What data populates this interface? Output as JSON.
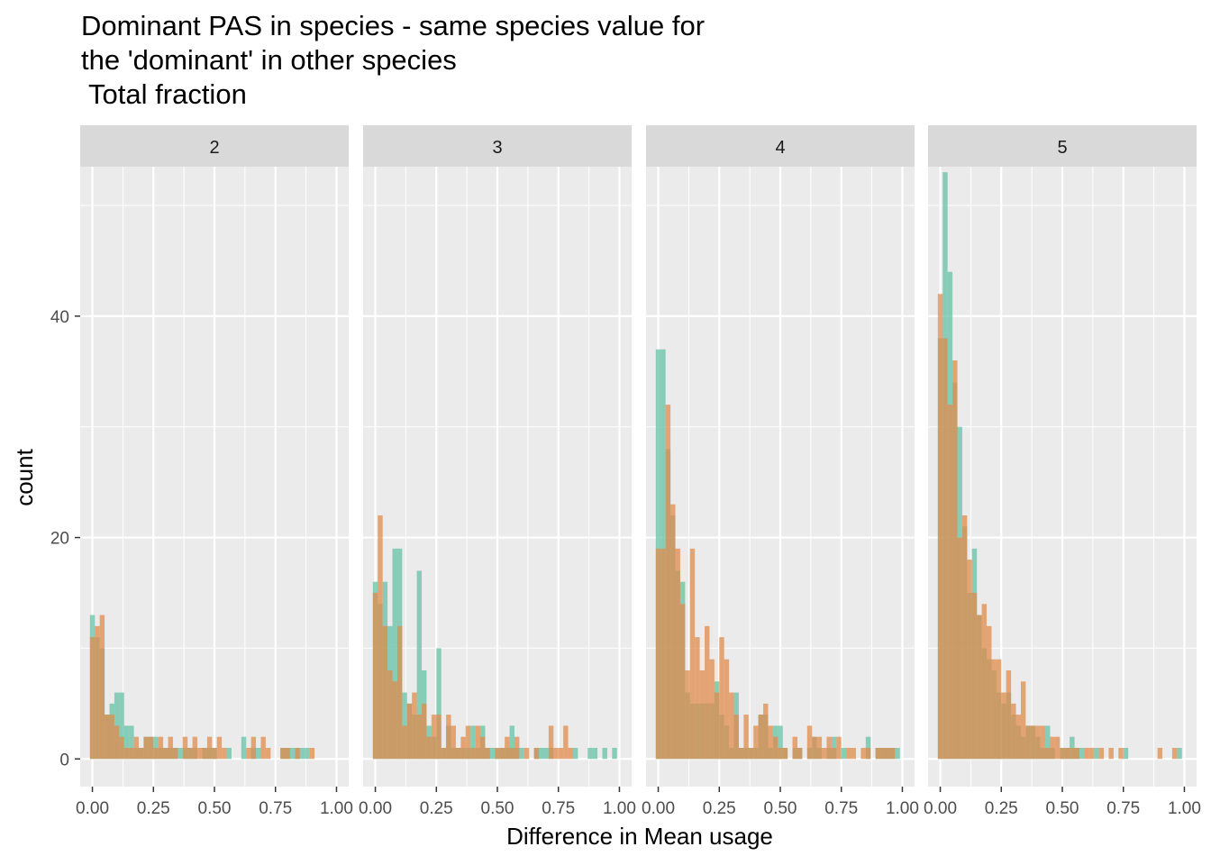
{
  "title_lines": [
    "Dominant PAS in species - same species value for",
    "the 'dominant' in other species",
    " Total fraction"
  ],
  "colors": {
    "panel_bg": "#ebebeb",
    "grid": "#ffffff",
    "strip_bg": "#d9d9d9",
    "series_a": "#66c2a5",
    "series_b": "#e08b4b",
    "overlap": "#7f9f6f"
  },
  "chart_data": {
    "type": "bar",
    "title": "Dominant PAS in species - same species value for the 'dominant' in other species Total fraction",
    "xlabel": "Difference in Mean usage",
    "ylabel": "count",
    "xlim": [
      -0.05,
      1.05
    ],
    "ylim": [
      -2.5,
      53.5
    ],
    "x_ticks": [
      "0.00",
      "0.25",
      "0.50",
      "0.75",
      "1.00"
    ],
    "y_ticks": [
      "0",
      "20",
      "40"
    ],
    "y_tick_values": [
      0,
      20,
      40
    ],
    "bin_width": 0.02,
    "grid": true,
    "series_colors": [
      "#66c2a5",
      "#e08b4b"
    ],
    "panels": [
      {
        "label": "2",
        "series": [
          {
            "x": [
              0.0,
              0.02,
              0.04,
              0.06,
              0.08,
              0.1,
              0.12,
              0.14,
              0.16,
              0.18,
              0.2,
              0.22,
              0.24,
              0.26,
              0.28,
              0.3,
              0.32,
              0.34,
              0.36,
              0.38,
              0.4,
              0.42,
              0.44,
              0.46,
              0.48,
              0.5,
              0.52,
              0.54,
              0.56,
              0.58,
              0.6,
              0.62,
              0.64,
              0.66,
              0.68,
              0.7,
              0.72,
              0.74,
              0.76,
              0.78,
              0.8,
              0.82,
              0.84,
              0.86,
              0.88,
              0.9
            ],
            "values": [
              13,
              11,
              10,
              4,
              5,
              6,
              6,
              3,
              3,
              1,
              1,
              2,
              2,
              2,
              1,
              1,
              1,
              1,
              1,
              1,
              1,
              1,
              0,
              1,
              1,
              1,
              0,
              0,
              1,
              0,
              0,
              2,
              0,
              1,
              1,
              0,
              0,
              0,
              0,
              1,
              1,
              1,
              1,
              1,
              1,
              0
            ]
          },
          {
            "x": [
              0.0,
              0.02,
              0.04,
              0.06,
              0.08,
              0.1,
              0.12,
              0.14,
              0.16,
              0.18,
              0.2,
              0.22,
              0.24,
              0.26,
              0.28,
              0.3,
              0.32,
              0.34,
              0.36,
              0.38,
              0.4,
              0.42,
              0.44,
              0.46,
              0.48,
              0.5,
              0.52,
              0.54,
              0.56,
              0.58,
              0.6,
              0.62,
              0.64,
              0.66,
              0.68,
              0.7,
              0.72,
              0.74,
              0.76,
              0.78,
              0.8,
              0.82,
              0.84,
              0.86,
              0.88,
              0.9
            ],
            "values": [
              11,
              12,
              13,
              4,
              4,
              3,
              2,
              1,
              1,
              2,
              1,
              2,
              2,
              1,
              2,
              1,
              2,
              1,
              0,
              2,
              1,
              2,
              1,
              1,
              2,
              1,
              2,
              1,
              0,
              0,
              0,
              0,
              1,
              2,
              0,
              2,
              1,
              0,
              0,
              1,
              1,
              0,
              1,
              0,
              0,
              1
            ]
          }
        ]
      },
      {
        "label": "3",
        "series": [
          {
            "x": [
              0.0,
              0.02,
              0.04,
              0.06,
              0.08,
              0.1,
              0.12,
              0.14,
              0.16,
              0.18,
              0.2,
              0.22,
              0.24,
              0.26,
              0.28,
              0.3,
              0.32,
              0.34,
              0.36,
              0.38,
              0.4,
              0.42,
              0.44,
              0.46,
              0.48,
              0.5,
              0.52,
              0.54,
              0.56,
              0.58,
              0.6,
              0.62,
              0.64,
              0.66,
              0.68,
              0.7,
              0.72,
              0.74,
              0.76,
              0.78,
              0.8,
              0.82,
              0.84,
              0.86,
              0.88,
              0.9,
              0.92,
              0.94,
              0.96,
              0.98,
              1.0
            ],
            "values": [
              16,
              14,
              16,
              12,
              19,
              19,
              6,
              5,
              4,
              17,
              8,
              3,
              2,
              10,
              1,
              3,
              1,
              1,
              1,
              1,
              3,
              1,
              3,
              1,
              1,
              1,
              1,
              1,
              3,
              1,
              1,
              0,
              0,
              1,
              1,
              1,
              1,
              0,
              0,
              0,
              0,
              1,
              0,
              0,
              1,
              1,
              0,
              1,
              0,
              1,
              0
            ]
          },
          {
            "x": [
              0.0,
              0.02,
              0.04,
              0.06,
              0.08,
              0.1,
              0.12,
              0.14,
              0.16,
              0.18,
              0.2,
              0.22,
              0.24,
              0.26,
              0.28,
              0.3,
              0.32,
              0.34,
              0.36,
              0.38,
              0.4,
              0.42,
              0.44,
              0.46,
              0.48,
              0.5,
              0.52,
              0.54,
              0.56,
              0.58,
              0.6,
              0.62,
              0.64,
              0.66,
              0.68,
              0.7,
              0.72,
              0.74,
              0.76,
              0.78,
              0.8,
              0.82,
              0.84,
              0.86,
              0.88,
              0.9,
              0.92,
              0.94,
              0.96,
              0.98,
              1.0
            ],
            "values": [
              15,
              22,
              12,
              8,
              7,
              12,
              3,
              5,
              6,
              4,
              5,
              2,
              4,
              4,
              1,
              4,
              3,
              1,
              2,
              3,
              1,
              3,
              2,
              1,
              0,
              1,
              1,
              2,
              1,
              2,
              0,
              1,
              0,
              1,
              0,
              0,
              3,
              1,
              1,
              3,
              1,
              0,
              0,
              0,
              0,
              0,
              0,
              0,
              0,
              0,
              0
            ]
          }
        ]
      },
      {
        "label": "4",
        "series": [
          {
            "x": [
              0.0,
              0.02,
              0.04,
              0.06,
              0.08,
              0.1,
              0.12,
              0.14,
              0.16,
              0.18,
              0.2,
              0.22,
              0.24,
              0.26,
              0.28,
              0.3,
              0.32,
              0.34,
              0.36,
              0.38,
              0.4,
              0.42,
              0.44,
              0.46,
              0.48,
              0.5,
              0.52,
              0.54,
              0.56,
              0.58,
              0.6,
              0.62,
              0.64,
              0.66,
              0.68,
              0.7,
              0.72,
              0.74,
              0.76,
              0.78,
              0.8,
              0.82,
              0.84,
              0.86,
              0.88,
              0.9,
              0.92,
              0.94,
              0.96,
              0.98
            ],
            "values": [
              37,
              37,
              28,
              22,
              17,
              16,
              6,
              5,
              5,
              5,
              5,
              5,
              7,
              4,
              3,
              1,
              6,
              1,
              1,
              1,
              1,
              4,
              4,
              1,
              3,
              3,
              1,
              0,
              1,
              1,
              0,
              1,
              2,
              1,
              0,
              1,
              2,
              0,
              1,
              0,
              0,
              0,
              0,
              2,
              0,
              1,
              1,
              1,
              1,
              1
            ]
          },
          {
            "x": [
              0.0,
              0.02,
              0.04,
              0.06,
              0.08,
              0.1,
              0.12,
              0.14,
              0.16,
              0.18,
              0.2,
              0.22,
              0.24,
              0.26,
              0.28,
              0.3,
              0.32,
              0.34,
              0.36,
              0.38,
              0.4,
              0.42,
              0.44,
              0.46,
              0.48,
              0.5,
              0.52,
              0.54,
              0.56,
              0.58,
              0.6,
              0.62,
              0.64,
              0.66,
              0.68,
              0.7,
              0.72,
              0.74,
              0.76,
              0.78,
              0.8,
              0.82,
              0.84,
              0.86,
              0.88,
              0.9,
              0.92,
              0.94,
              0.96,
              0.98
            ],
            "values": [
              19,
              19,
              32,
              23,
              19,
              14,
              8,
              19,
              11,
              8,
              12,
              9,
              6,
              11,
              9,
              6,
              4,
              1,
              4,
              1,
              3,
              4,
              5,
              3,
              2,
              1,
              1,
              0,
              2,
              1,
              0,
              3,
              2,
              2,
              1,
              2,
              1,
              2,
              0,
              1,
              1,
              0,
              1,
              1,
              0,
              1,
              1,
              1,
              1,
              0
            ]
          }
        ]
      },
      {
        "label": "5",
        "series": [
          {
            "x": [
              0.0,
              0.02,
              0.04,
              0.06,
              0.08,
              0.1,
              0.12,
              0.14,
              0.16,
              0.18,
              0.2,
              0.22,
              0.24,
              0.26,
              0.28,
              0.3,
              0.32,
              0.34,
              0.36,
              0.38,
              0.4,
              0.42,
              0.44,
              0.46,
              0.48,
              0.5,
              0.52,
              0.54,
              0.56,
              0.58,
              0.6,
              0.62,
              0.64,
              0.66,
              0.68,
              0.7,
              0.72,
              0.74,
              0.76,
              0.78,
              0.8,
              0.82,
              0.84,
              0.86,
              0.88,
              0.9,
              0.92,
              0.94,
              0.96,
              0.98
            ],
            "values": [
              38,
              53,
              44,
              34,
              30,
              21,
              15,
              19,
              13,
              10,
              9,
              8,
              6,
              5,
              6,
              4,
              3,
              2,
              3,
              3,
              2,
              1,
              3,
              1,
              0,
              1,
              1,
              2,
              1,
              1,
              0,
              0,
              1,
              0,
              0,
              0,
              0,
              0,
              1,
              0,
              0,
              0,
              0,
              0,
              0,
              0,
              0,
              0,
              0,
              1
            ]
          },
          {
            "x": [
              0.0,
              0.02,
              0.04,
              0.06,
              0.08,
              0.1,
              0.12,
              0.14,
              0.16,
              0.18,
              0.2,
              0.22,
              0.24,
              0.26,
              0.28,
              0.3,
              0.32,
              0.34,
              0.36,
              0.38,
              0.4,
              0.42,
              0.44,
              0.46,
              0.48,
              0.5,
              0.52,
              0.54,
              0.56,
              0.58,
              0.6,
              0.62,
              0.64,
              0.66,
              0.68,
              0.7,
              0.72,
              0.74,
              0.76,
              0.78,
              0.8,
              0.82,
              0.84,
              0.86,
              0.88,
              0.9,
              0.92,
              0.94,
              0.96,
              0.98
            ],
            "values": [
              42,
              38,
              32,
              36,
              20,
              22,
              18,
              15,
              13,
              14,
              12,
              9,
              9,
              6,
              8,
              5,
              4,
              7,
              3,
              3,
              3,
              3,
              1,
              2,
              2,
              1,
              1,
              1,
              1,
              0,
              1,
              1,
              0,
              1,
              0,
              1,
              0,
              1,
              0,
              0,
              0,
              0,
              0,
              0,
              0,
              1,
              0,
              0,
              1,
              0
            ]
          }
        ]
      }
    ]
  }
}
